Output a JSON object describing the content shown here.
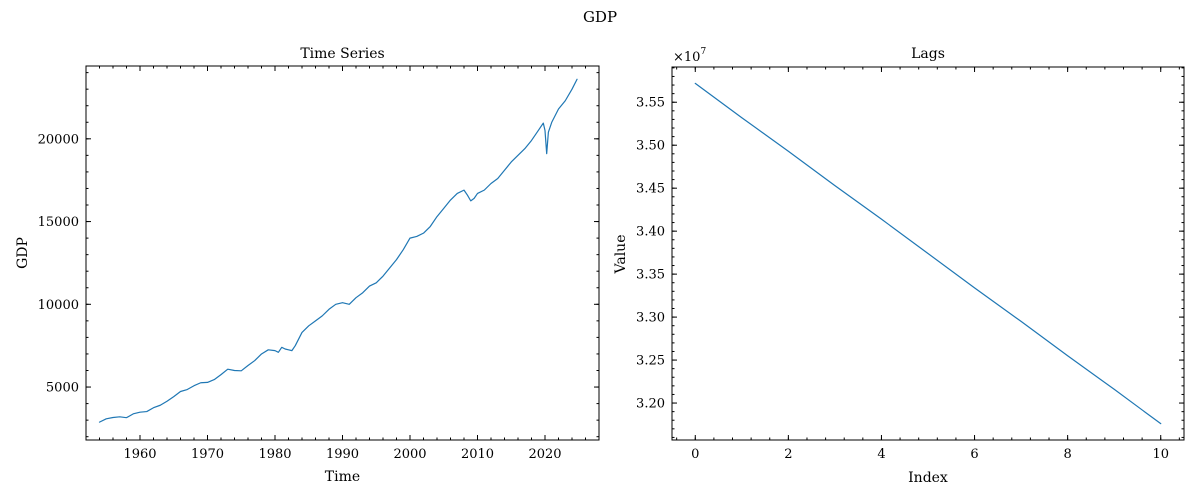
{
  "figure": {
    "title": "GDP"
  },
  "chart_data": [
    {
      "type": "line",
      "title": "Time Series",
      "xlabel": "Time",
      "ylabel": "GDP",
      "xlim": [
        1952,
        2028
      ],
      "ylim": [
        1800,
        24400
      ],
      "grid": false,
      "legend": "none",
      "color": "#1f77b4",
      "x_ticks": [
        1960,
        1970,
        1980,
        1990,
        2000,
        2010,
        2020
      ],
      "x_tick_labels": [
        "1960",
        "1970",
        "1980",
        "1990",
        "2000",
        "2010",
        "2020"
      ],
      "y_ticks": [
        5000,
        10000,
        15000,
        20000
      ],
      "y_tick_labels": [
        "5000",
        "10000",
        "15000",
        "20000"
      ],
      "x_minor_step": 2,
      "y_minor_step": 1000,
      "series": [
        {
          "x": [
            1954.0,
            1955.0,
            1956.0,
            1957.0,
            1958.0,
            1959.0,
            1960.0,
            1961.0,
            1962.0,
            1963.0,
            1964.0,
            1965.0,
            1966.0,
            1967.0,
            1968.0,
            1969.0,
            1970.0,
            1971.0,
            1972.0,
            1973.0,
            1974.0,
            1975.0,
            1976.0,
            1977.0,
            1978.0,
            1979.0,
            1980.0,
            1980.5,
            1981.0,
            1981.5,
            1982.0,
            1982.5,
            1983.0,
            1984.0,
            1985.0,
            1986.0,
            1987.0,
            1988.0,
            1989.0,
            1990.0,
            1991.0,
            1992.0,
            1993.0,
            1994.0,
            1995.0,
            1996.0,
            1997.0,
            1998.0,
            1999.0,
            2000.0,
            2001.0,
            2002.0,
            2003.0,
            2004.0,
            2005.0,
            2006.0,
            2007.0,
            2008.0,
            2008.5,
            2009.0,
            2009.5,
            2010.0,
            2011.0,
            2012.0,
            2013.0,
            2014.0,
            2015.0,
            2016.0,
            2017.0,
            2018.0,
            2019.0,
            2019.75,
            2020.0,
            2020.25,
            2020.5,
            2021.0,
            2022.0,
            2023.0,
            2024.0,
            2024.75
          ],
          "y": [
            2880,
            3080,
            3160,
            3200,
            3150,
            3380,
            3480,
            3520,
            3750,
            3900,
            4140,
            4420,
            4730,
            4850,
            5080,
            5260,
            5280,
            5450,
            5750,
            6080,
            6000,
            5980,
            6300,
            6600,
            7000,
            7250,
            7200,
            7100,
            7400,
            7300,
            7250,
            7200,
            7500,
            8300,
            8700,
            9000,
            9300,
            9700,
            10000,
            10100,
            10000,
            10400,
            10700,
            11100,
            11300,
            11700,
            12200,
            12700,
            13300,
            14000,
            14100,
            14300,
            14700,
            15300,
            15800,
            16300,
            16700,
            16900,
            16600,
            16250,
            16400,
            16700,
            16900,
            17300,
            17600,
            18100,
            18600,
            19000,
            19400,
            19900,
            20500,
            20950,
            20500,
            19100,
            20400,
            21000,
            21800,
            22300,
            23000,
            23600
          ]
        }
      ]
    },
    {
      "type": "line",
      "title": "Lags",
      "xlabel": "Index",
      "ylabel": "Value",
      "offset_text": "×10",
      "offset_exponent": "7",
      "xlim": [
        -0.5,
        10.5
      ],
      "ylim": [
        3.157,
        3.591
      ],
      "grid": false,
      "legend": "none",
      "color": "#1f77b4",
      "x_ticks": [
        0,
        2,
        4,
        6,
        8,
        10
      ],
      "x_tick_labels": [
        "0",
        "2",
        "4",
        "6",
        "8",
        "10"
      ],
      "y_ticks": [
        3.2,
        3.25,
        3.3,
        3.35,
        3.4,
        3.45,
        3.5,
        3.55
      ],
      "y_tick_labels": [
        "3.20",
        "3.25",
        "3.30",
        "3.35",
        "3.40",
        "3.45",
        "3.50",
        "3.55"
      ],
      "x_minor_step": 0.4,
      "y_minor_step": 0.01,
      "series": [
        {
          "x": [
            0,
            1,
            2,
            3,
            4,
            5,
            6,
            7,
            8,
            9,
            10
          ],
          "y": [
            3.572,
            3.532,
            3.493,
            3.453,
            3.414,
            3.374,
            3.334,
            3.295,
            3.255,
            3.216,
            3.176
          ]
        }
      ]
    }
  ]
}
